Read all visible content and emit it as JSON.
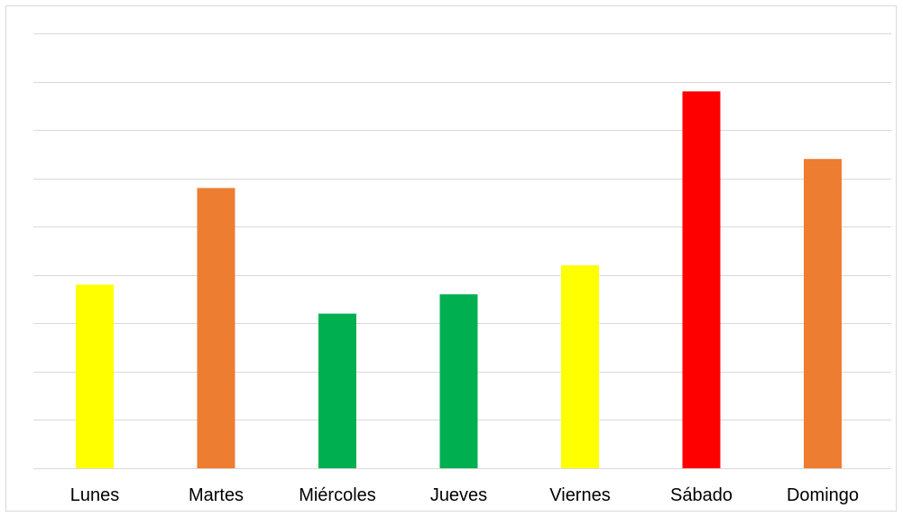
{
  "chart_data": {
    "type": "bar",
    "categories": [
      "Lunes",
      "Martes",
      "Miércoles",
      "Jueves",
      "Viernes",
      "Sábado",
      "Domingo"
    ],
    "values": [
      4.8,
      6.8,
      4.2,
      4.6,
      5.2,
      8.8,
      7.4
    ],
    "colors": [
      "#FFFF00",
      "#ED7D31",
      "#00B050",
      "#00B050",
      "#FFFF00",
      "#FF0000",
      "#ED7D31"
    ],
    "ylim": [
      1,
      10
    ],
    "grid": true,
    "gridline_color": "#d9d9d9",
    "title": "",
    "xlabel": "",
    "ylabel": "",
    "legend": false
  }
}
